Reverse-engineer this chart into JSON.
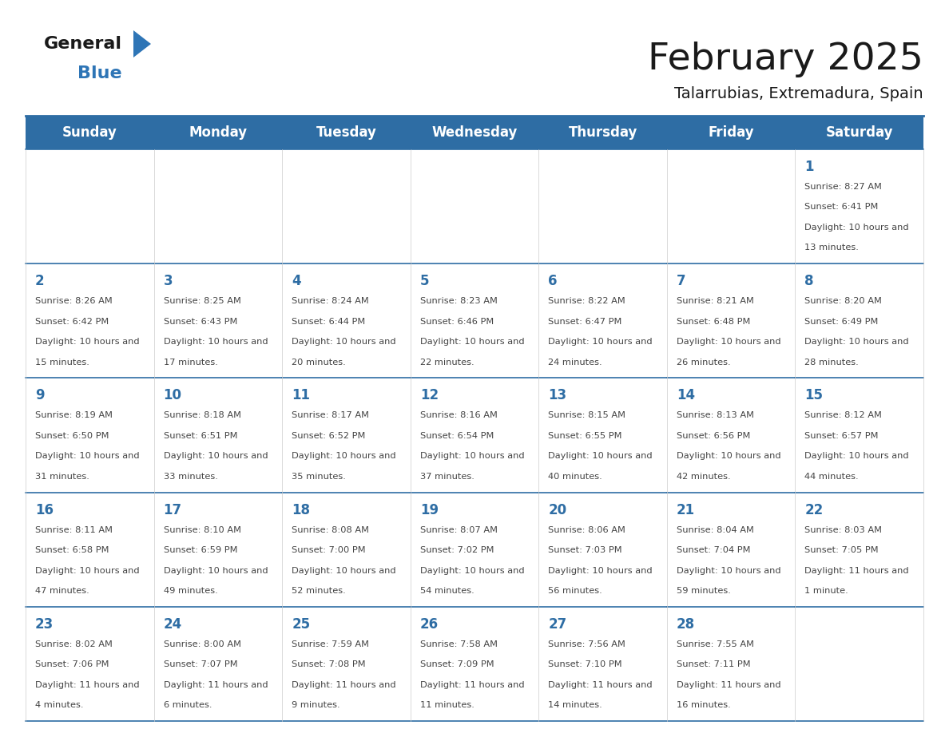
{
  "title": "February 2025",
  "subtitle": "Talarrubias, Extremadura, Spain",
  "days_of_week": [
    "Sunday",
    "Monday",
    "Tuesday",
    "Wednesday",
    "Thursday",
    "Friday",
    "Saturday"
  ],
  "header_bg": "#2E6DA4",
  "header_text": "#FFFFFF",
  "cell_bg": "#FFFFFF",
  "cell_border": "#2E6DA4",
  "day_num_color": "#2E6DA4",
  "info_color": "#444444",
  "title_color": "#1A1A1A",
  "logo_general_color": "#1A1A1A",
  "logo_blue_color": "#2E75B6",
  "logo_triangle_color": "#2E75B6",
  "calendar_data": [
    [
      null,
      null,
      null,
      null,
      null,
      null,
      {
        "day": 1,
        "sunrise": "8:27 AM",
        "sunset": "6:41 PM",
        "daylight": "10 hours and 13 minutes."
      }
    ],
    [
      {
        "day": 2,
        "sunrise": "8:26 AM",
        "sunset": "6:42 PM",
        "daylight": "10 hours and 15 minutes."
      },
      {
        "day": 3,
        "sunrise": "8:25 AM",
        "sunset": "6:43 PM",
        "daylight": "10 hours and 17 minutes."
      },
      {
        "day": 4,
        "sunrise": "8:24 AM",
        "sunset": "6:44 PM",
        "daylight": "10 hours and 20 minutes."
      },
      {
        "day": 5,
        "sunrise": "8:23 AM",
        "sunset": "6:46 PM",
        "daylight": "10 hours and 22 minutes."
      },
      {
        "day": 6,
        "sunrise": "8:22 AM",
        "sunset": "6:47 PM",
        "daylight": "10 hours and 24 minutes."
      },
      {
        "day": 7,
        "sunrise": "8:21 AM",
        "sunset": "6:48 PM",
        "daylight": "10 hours and 26 minutes."
      },
      {
        "day": 8,
        "sunrise": "8:20 AM",
        "sunset": "6:49 PM",
        "daylight": "10 hours and 28 minutes."
      }
    ],
    [
      {
        "day": 9,
        "sunrise": "8:19 AM",
        "sunset": "6:50 PM",
        "daylight": "10 hours and 31 minutes."
      },
      {
        "day": 10,
        "sunrise": "8:18 AM",
        "sunset": "6:51 PM",
        "daylight": "10 hours and 33 minutes."
      },
      {
        "day": 11,
        "sunrise": "8:17 AM",
        "sunset": "6:52 PM",
        "daylight": "10 hours and 35 minutes."
      },
      {
        "day": 12,
        "sunrise": "8:16 AM",
        "sunset": "6:54 PM",
        "daylight": "10 hours and 37 minutes."
      },
      {
        "day": 13,
        "sunrise": "8:15 AM",
        "sunset": "6:55 PM",
        "daylight": "10 hours and 40 minutes."
      },
      {
        "day": 14,
        "sunrise": "8:13 AM",
        "sunset": "6:56 PM",
        "daylight": "10 hours and 42 minutes."
      },
      {
        "day": 15,
        "sunrise": "8:12 AM",
        "sunset": "6:57 PM",
        "daylight": "10 hours and 44 minutes."
      }
    ],
    [
      {
        "day": 16,
        "sunrise": "8:11 AM",
        "sunset": "6:58 PM",
        "daylight": "10 hours and 47 minutes."
      },
      {
        "day": 17,
        "sunrise": "8:10 AM",
        "sunset": "6:59 PM",
        "daylight": "10 hours and 49 minutes."
      },
      {
        "day": 18,
        "sunrise": "8:08 AM",
        "sunset": "7:00 PM",
        "daylight": "10 hours and 52 minutes."
      },
      {
        "day": 19,
        "sunrise": "8:07 AM",
        "sunset": "7:02 PM",
        "daylight": "10 hours and 54 minutes."
      },
      {
        "day": 20,
        "sunrise": "8:06 AM",
        "sunset": "7:03 PM",
        "daylight": "10 hours and 56 minutes."
      },
      {
        "day": 21,
        "sunrise": "8:04 AM",
        "sunset": "7:04 PM",
        "daylight": "10 hours and 59 minutes."
      },
      {
        "day": 22,
        "sunrise": "8:03 AM",
        "sunset": "7:05 PM",
        "daylight": "11 hours and 1 minute."
      }
    ],
    [
      {
        "day": 23,
        "sunrise": "8:02 AM",
        "sunset": "7:06 PM",
        "daylight": "11 hours and 4 minutes."
      },
      {
        "day": 24,
        "sunrise": "8:00 AM",
        "sunset": "7:07 PM",
        "daylight": "11 hours and 6 minutes."
      },
      {
        "day": 25,
        "sunrise": "7:59 AM",
        "sunset": "7:08 PM",
        "daylight": "11 hours and 9 minutes."
      },
      {
        "day": 26,
        "sunrise": "7:58 AM",
        "sunset": "7:09 PM",
        "daylight": "11 hours and 11 minutes."
      },
      {
        "day": 27,
        "sunrise": "7:56 AM",
        "sunset": "7:10 PM",
        "daylight": "11 hours and 14 minutes."
      },
      {
        "day": 28,
        "sunrise": "7:55 AM",
        "sunset": "7:11 PM",
        "daylight": "11 hours and 16 minutes."
      },
      null
    ]
  ]
}
